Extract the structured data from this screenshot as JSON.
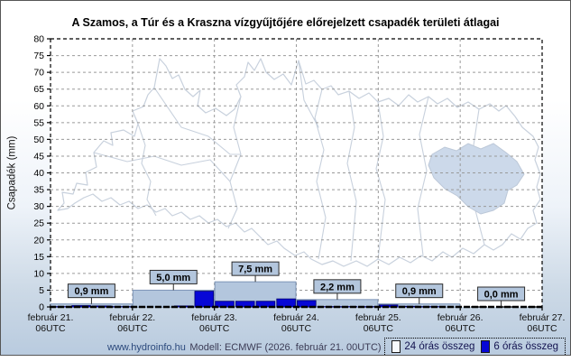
{
  "title": "A Szamos, a Túr és a Kraszna vízgyűjtőjére előrejelzett csapadék területi átlagai",
  "footer": {
    "site": "www.hydroinfo.hu",
    "model": "Modell: ECMWF (2026. február 21. 00UTC)"
  },
  "colors": {
    "daily_bar": "#b3c6dd",
    "six_hour_bar": "#0707d6",
    "annotation_box": "#b3c6dd",
    "legend_daily_swatch": "#f7fafd",
    "page_gradient_bottom": "#b9cbdf",
    "map_outline": "#c8d1dd",
    "highlighted_subbasin_fill": "#ccd9ea"
  },
  "chart_data": {
    "type": "bar",
    "title": "A Szamos, a Túr és a Kraszna vízgyűjtőjére előrejelzett csapadék területi átlagai",
    "xlabel": "",
    "ylabel": "Csapadék (mm)",
    "ylim": [
      0,
      80
    ],
    "ytick_step": 5,
    "grid": true,
    "legend_position": "bottom-right",
    "x_tick_labels": [
      {
        "date": "február 21.",
        "time": "06UTC"
      },
      {
        "date": "február 22.",
        "time": "06UTC"
      },
      {
        "date": "február 23.",
        "time": "06UTC"
      },
      {
        "date": "február 24.",
        "time": "06UTC"
      },
      {
        "date": "február 25.",
        "time": "06UTC"
      },
      {
        "date": "február 26.",
        "time": "06UTC"
      },
      {
        "date": "február 27.",
        "time": "06UTC"
      }
    ],
    "series": [
      {
        "name": "24 órás összeg",
        "color": "#b3c6dd",
        "values": [
          0.9,
          5.0,
          7.5,
          2.2,
          0.9,
          0.0
        ],
        "value_labels": [
          "0,9 mm",
          "5,0 mm",
          "7,5 mm",
          "2,2 mm",
          "0,9 mm",
          "0,0 mm"
        ]
      },
      {
        "name": "6 órás összeg",
        "color": "#0707d6",
        "values_per_6h": [
          [
            0.1,
            0.4,
            0.3,
            0.1
          ],
          [
            0.0,
            0.0,
            0.3,
            4.7
          ],
          [
            1.7,
            1.7,
            1.7,
            2.4
          ],
          [
            1.9,
            0.1,
            0.1,
            0.1
          ],
          [
            0.6,
            0.2,
            0.1,
            0.0
          ],
          [
            0.0,
            0.0,
            0.0,
            0.0
          ]
        ]
      }
    ]
  }
}
